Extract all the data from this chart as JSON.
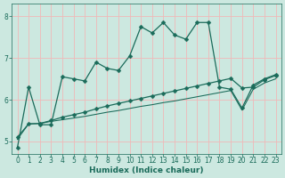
{
  "xlabel": "Humidex (Indice chaleur)",
  "background_color": "#cce8e0",
  "grid_color": "#f0b8b8",
  "line_color": "#1a6b5a",
  "xlim": [
    -0.5,
    23.5
  ],
  "ylim": [
    4.7,
    8.3
  ],
  "yticks": [
    5,
    6,
    7,
    8
  ],
  "xticks": [
    0,
    1,
    2,
    3,
    4,
    5,
    6,
    7,
    8,
    9,
    10,
    11,
    12,
    13,
    14,
    15,
    16,
    17,
    18,
    19,
    20,
    21,
    22,
    23
  ],
  "line1_x": [
    0,
    1,
    2,
    3,
    4,
    5,
    6,
    7,
    8,
    9,
    10,
    11,
    12,
    13,
    14,
    15,
    16,
    17,
    18,
    19,
    20,
    21,
    22,
    23
  ],
  "line1_y": [
    4.85,
    6.3,
    5.4,
    5.4,
    6.55,
    6.5,
    6.45,
    6.9,
    6.75,
    6.7,
    7.05,
    7.75,
    7.6,
    7.85,
    7.55,
    7.45,
    7.85,
    7.85,
    6.3,
    6.25,
    5.8,
    6.35,
    6.5,
    6.6
  ],
  "line2_x": [
    0,
    1,
    2,
    3,
    4,
    5,
    6,
    7,
    8,
    9,
    10,
    11,
    12,
    13,
    14,
    15,
    16,
    17,
    18,
    19,
    20,
    21,
    22,
    23
  ],
  "line2_y": [
    5.05,
    5.42,
    5.43,
    5.48,
    5.52,
    5.56,
    5.6,
    5.65,
    5.7,
    5.74,
    5.79,
    5.84,
    5.88,
    5.93,
    5.97,
    6.02,
    6.07,
    6.12,
    6.17,
    6.22,
    5.75,
    6.25,
    6.4,
    6.5
  ],
  "line3_x": [
    0,
    1,
    2,
    3,
    4,
    5,
    6,
    7,
    8,
    9,
    10,
    11,
    12,
    13,
    14,
    15,
    16,
    17,
    18,
    19,
    20,
    21,
    22,
    23
  ],
  "line3_y": [
    5.1,
    5.42,
    5.43,
    5.5,
    5.58,
    5.64,
    5.7,
    5.78,
    5.85,
    5.91,
    5.97,
    6.03,
    6.09,
    6.15,
    6.21,
    6.27,
    6.33,
    6.39,
    6.45,
    6.51,
    6.28,
    6.3,
    6.48,
    6.58
  ],
  "marker_size": 2.5,
  "linewidth": 0.9,
  "font_size_label": 6.5,
  "font_size_tick": 5.5
}
